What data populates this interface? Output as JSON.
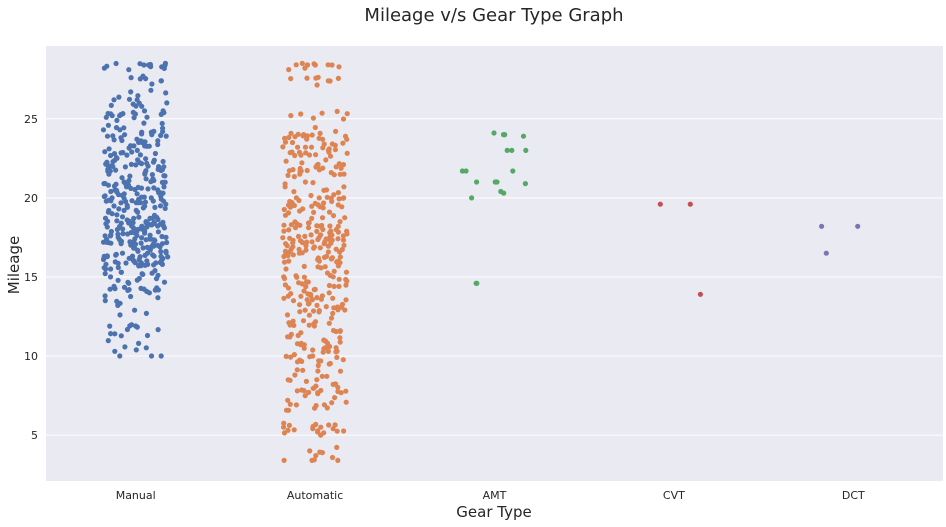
{
  "chart_data": {
    "type": "scatter",
    "subtype": "strip",
    "title": "Mileage v/s Gear Type Graph",
    "xlabel": "Gear Type",
    "ylabel": "Mileage",
    "categories": [
      "Manual",
      "Automatic",
      "AMT",
      "CVT",
      "DCT"
    ],
    "ylim": [
      2.1,
      29.6
    ],
    "yticks": [
      5,
      10,
      15,
      20,
      25
    ],
    "grid": true,
    "legend": "none",
    "colors": {
      "background": "#eaeaf2",
      "grid": "#ffffff",
      "Manual": "#4c72b0",
      "Automatic": "#dd8452",
      "AMT": "#55a868",
      "CVT": "#c44e52",
      "DCT": "#8172b3"
    },
    "series": [
      {
        "category": "Manual",
        "count_approx": 600,
        "range": [
          10.0,
          28.5
        ],
        "points": [
          28.4,
          28.4,
          28.4,
          28.1,
          27.6,
          27.4,
          27.4,
          26.8,
          26.2,
          26.2,
          26.0,
          25.5,
          25.4,
          25.3,
          25.2,
          25.1,
          24.7,
          24.4,
          24.3,
          24.2,
          24.0,
          23.9,
          23.8,
          23.6,
          23.5,
          23.3,
          23.1,
          23.0,
          22.9,
          22.7,
          22.5,
          22.4,
          22.3,
          22.1,
          22.0,
          21.8,
          21.7,
          21.5,
          21.4,
          21.2,
          21.1,
          21.0,
          20.9,
          20.8,
          20.7,
          20.6,
          20.5,
          20.4,
          20.3,
          20.2,
          20.1,
          20.0,
          19.9,
          19.8,
          19.7,
          19.6,
          19.5,
          19.4,
          19.3,
          19.2,
          19.1,
          19.0,
          18.9,
          18.8,
          18.7,
          18.6,
          18.5,
          18.4,
          18.3,
          18.2,
          18.1,
          18.0,
          17.9,
          17.8,
          17.7,
          17.6,
          17.5,
          17.4,
          17.3,
          17.2,
          17.1,
          17.0,
          16.9,
          16.8,
          16.7,
          16.6,
          16.5,
          16.4,
          16.3,
          16.2,
          16.1,
          16.0,
          15.9,
          15.8,
          15.7,
          15.6,
          15.5,
          15.4,
          15.3,
          15.1,
          15.0,
          14.8,
          14.6,
          14.4,
          14.2,
          14.0,
          13.8,
          13.2,
          12.9,
          12.6,
          11.9,
          11.3,
          10.8,
          10.3,
          10.0
        ]
      },
      {
        "category": "Automatic",
        "count_approx": 500,
        "range": [
          3.4,
          28.5
        ],
        "points": [
          28.4,
          28.4,
          28.4,
          27.4,
          25.3,
          25.2,
          24.2,
          24.0,
          23.9,
          23.7,
          23.5,
          23.1,
          23.0,
          22.7,
          22.1,
          22.0,
          21.7,
          21.5,
          21.0,
          20.7,
          20.5,
          20.2,
          20.0,
          19.7,
          19.5,
          19.3,
          19.1,
          18.9,
          18.7,
          18.5,
          18.3,
          18.2,
          18.0,
          17.9,
          17.8,
          17.6,
          17.5,
          17.4,
          17.2,
          17.1,
          17.0,
          16.9,
          16.7,
          16.6,
          16.5,
          16.3,
          16.2,
          16.0,
          15.9,
          15.7,
          15.5,
          15.3,
          15.1,
          14.9,
          14.7,
          14.5,
          14.2,
          14.0,
          13.8,
          13.5,
          13.2,
          12.9,
          12.6,
          12.2,
          11.9,
          11.6,
          11.3,
          11.0,
          10.8,
          10.6,
          10.3,
          10.0,
          9.7,
          9.4,
          9.1,
          8.8,
          8.5,
          8.1,
          7.8,
          7.5,
          7.2,
          6.7,
          5.5,
          5.5,
          5.0,
          4.0,
          3.4
        ]
      },
      {
        "category": "AMT",
        "count_approx": 21,
        "points": [
          24.1,
          24.0,
          24.0,
          23.9,
          23.0,
          23.0,
          23.0,
          21.7,
          21.7,
          21.7,
          21.0,
          21.0,
          21.0,
          20.9,
          20.4,
          20.3,
          20.0,
          14.6,
          14.6
        ]
      },
      {
        "category": "CVT",
        "count_approx": 3,
        "points": [
          19.6,
          19.6,
          13.9
        ]
      },
      {
        "category": "DCT",
        "count_approx": 3,
        "points": [
          18.2,
          18.2,
          16.5
        ]
      }
    ]
  }
}
